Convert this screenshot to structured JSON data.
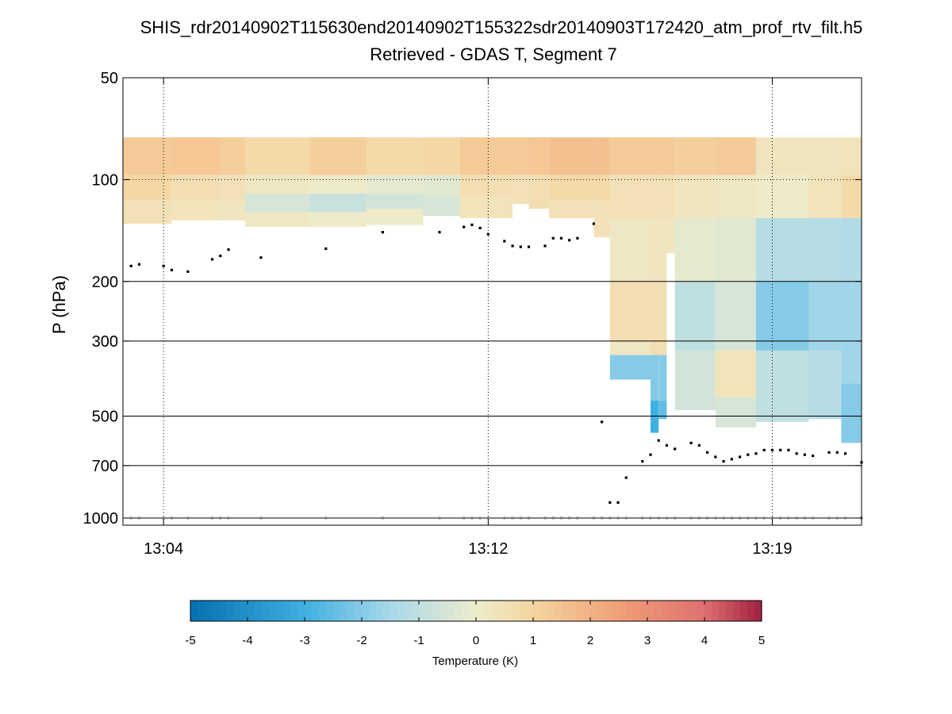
{
  "chart_data": {
    "type": "heatmap",
    "title": "SHIS_rdr20140902T115630end20140902T155322sdr20140903T172420_atm_prof_rtv_filt.h5",
    "subtitle": "Retrieved - GDAS T, Segment 7",
    "xlabel": "",
    "ylabel": "P (hPa)",
    "y_scale": "log",
    "y_direction": "reversed",
    "ylim": [
      50,
      1050
    ],
    "xlim_minutes_after_13h": [
      3.0,
      21.2
    ],
    "x_ticks": [
      {
        "minute": 4,
        "label": "13:04"
      },
      {
        "minute": 12,
        "label": "13:12"
      },
      {
        "minute": 19,
        "label": "13:19"
      }
    ],
    "y_ticks": [
      {
        "value": 50,
        "label": "50"
      },
      {
        "value": 100,
        "label": "100"
      },
      {
        "value": 200,
        "label": "200"
      },
      {
        "value": 300,
        "label": "300"
      },
      {
        "value": 500,
        "label": "500"
      },
      {
        "value": 700,
        "label": "700"
      },
      {
        "value": 1000,
        "label": "1000"
      }
    ],
    "grid_solid_levels": [
      200,
      300,
      500,
      700,
      1000
    ],
    "grid_dotted_levels": [
      100
    ],
    "grid_dotted_minutes": [
      4,
      12,
      19
    ],
    "colorbar": {
      "label": "Temperature (K)",
      "min": -5,
      "max": 5,
      "ticks": [
        -5,
        -4,
        -3,
        -2,
        -1,
        0,
        1,
        2,
        3,
        4,
        5
      ],
      "tick_labels": [
        "-5",
        "-4",
        "-3",
        "-2",
        "-1",
        "0",
        "1",
        "2",
        "3",
        "4",
        "5"
      ],
      "colormap_stops": [
        "#0570b0",
        "#3fb0e0",
        "#a8d8ea",
        "#eeeccc",
        "#f5d5a0",
        "#f0a078",
        "#e07070",
        "#a02040"
      ]
    },
    "temperature_field": {
      "description": "Retrieved minus GDAS temperature difference by column (time) and pressure band",
      "columns": [
        {
          "t0": 3.0,
          "t1": 4.2,
          "top": 75,
          "bottom": 135,
          "layers": [
            [
              75,
              97,
              1.3
            ],
            [
              97,
              115,
              0.9
            ],
            [
              115,
              135,
              0.5
            ]
          ]
        },
        {
          "t0": 4.2,
          "t1": 5.4,
          "top": 75,
          "bottom": 132,
          "layers": [
            [
              75,
              97,
              1.4
            ],
            [
              97,
              115,
              0.6
            ],
            [
              115,
              132,
              0.4
            ]
          ]
        },
        {
          "t0": 5.4,
          "t1": 6.0,
          "top": 75,
          "bottom": 132,
          "layers": [
            [
              75,
              97,
              1.2
            ],
            [
              97,
              115,
              0.5
            ],
            [
              115,
              132,
              0.3
            ]
          ]
        },
        {
          "t0": 6.0,
          "t1": 7.6,
          "top": 75,
          "bottom": 138,
          "layers": [
            [
              75,
              97,
              0.8
            ],
            [
              97,
              110,
              0.2
            ],
            [
              110,
              125,
              -0.5
            ],
            [
              125,
              138,
              0.2
            ]
          ]
        },
        {
          "t0": 7.6,
          "t1": 9.0,
          "top": 75,
          "bottom": 138,
          "layers": [
            [
              75,
              97,
              1.2
            ],
            [
              97,
              110,
              0.1
            ],
            [
              110,
              125,
              -0.8
            ],
            [
              125,
              138,
              0.1
            ]
          ]
        },
        {
          "t0": 9.0,
          "t1": 10.4,
          "top": 75,
          "bottom": 136,
          "layers": [
            [
              75,
              97,
              0.8
            ],
            [
              97,
              110,
              -0.2
            ],
            [
              110,
              122,
              -0.6
            ],
            [
              122,
              136,
              0.1
            ]
          ]
        },
        {
          "t0": 10.4,
          "t1": 11.3,
          "top": 75,
          "bottom": 128,
          "layers": [
            [
              75,
              97,
              0.9
            ],
            [
              97,
              112,
              -0.3
            ],
            [
              112,
              128,
              -0.5
            ]
          ]
        },
        {
          "t0": 11.3,
          "t1": 12.6,
          "top": 75,
          "bottom": 130,
          "layers": [
            [
              75,
              97,
              1.3
            ],
            [
              97,
              112,
              0.6
            ],
            [
              112,
              130,
              0.4
            ]
          ]
        },
        {
          "t0": 12.6,
          "t1": 13.0,
          "top": 75,
          "bottom": 118,
          "layers": [
            [
              75,
              97,
              1.3
            ],
            [
              97,
              118,
              0.5
            ]
          ]
        },
        {
          "t0": 13.0,
          "t1": 13.5,
          "top": 75,
          "bottom": 122,
          "layers": [
            [
              75,
              97,
              1.4
            ],
            [
              97,
              122,
              0.6
            ]
          ]
        },
        {
          "t0": 13.5,
          "t1": 14.6,
          "top": 75,
          "bottom": 130,
          "layers": [
            [
              75,
              97,
              1.6
            ],
            [
              97,
              115,
              0.8
            ],
            [
              115,
              130,
              0.5
            ]
          ]
        },
        {
          "t0": 14.6,
          "t1": 15.0,
          "top": 75,
          "bottom": 148,
          "layers": [
            [
              75,
              97,
              1.6
            ],
            [
              97,
              115,
              0.8
            ],
            [
              115,
              148,
              0.5
            ]
          ]
        },
        {
          "t0": 15.0,
          "t1": 16.0,
          "top": 75,
          "bottom": 390,
          "layers": [
            [
              75,
              97,
              1.3
            ],
            [
              97,
              130,
              0.5
            ],
            [
              130,
              200,
              0.2
            ],
            [
              200,
              300,
              0.6
            ],
            [
              300,
              330,
              0.2
            ],
            [
              330,
              390,
              -2.0
            ]
          ]
        },
        {
          "t0": 16.0,
          "t1": 16.2,
          "top": 75,
          "bottom": 560,
          "layers": [
            [
              75,
              97,
              1.3
            ],
            [
              97,
              130,
              0.5
            ],
            [
              130,
              200,
              0.3
            ],
            [
              200,
              330,
              0.6
            ],
            [
              330,
              450,
              -2.0
            ],
            [
              450,
              560,
              -3.0
            ]
          ]
        },
        {
          "t0": 16.2,
          "t1": 16.4,
          "top": 75,
          "bottom": 510,
          "layers": [
            [
              75,
              97,
              1.3
            ],
            [
              97,
              130,
              0.5
            ],
            [
              130,
              200,
              0.3
            ],
            [
              200,
              330,
              0.6
            ],
            [
              330,
              450,
              -2.0
            ],
            [
              450,
              510,
              -2.5
            ]
          ]
        },
        {
          "t0": 16.4,
          "t1": 16.6,
          "top": 75,
          "bottom": 165,
          "layers": [
            [
              75,
              97,
              1.3
            ],
            [
              97,
              130,
              0.5
            ],
            [
              130,
              165,
              0.3
            ]
          ]
        },
        {
          "t0": 16.6,
          "t1": 17.6,
          "top": 75,
          "bottom": 480,
          "layers": [
            [
              75,
              97,
              1.2
            ],
            [
              97,
              130,
              0.3
            ],
            [
              130,
              200,
              -0.2
            ],
            [
              200,
              320,
              -1.0
            ],
            [
              320,
              480,
              -0.6
            ]
          ]
        },
        {
          "t0": 17.6,
          "t1": 18.6,
          "top": 75,
          "bottom": 540,
          "layers": [
            [
              75,
              97,
              1.3
            ],
            [
              97,
              130,
              0.2
            ],
            [
              130,
              200,
              -0.3
            ],
            [
              200,
              320,
              -0.5
            ],
            [
              320,
              440,
              0.4
            ],
            [
              440,
              540,
              -0.5
            ]
          ]
        },
        {
          "t0": 18.6,
          "t1": 19.9,
          "top": 75,
          "bottom": 520,
          "layers": [
            [
              75,
              97,
              0.3
            ],
            [
              97,
              130,
              0.1
            ],
            [
              130,
              200,
              -1.2
            ],
            [
              200,
              320,
              -2.0
            ],
            [
              320,
              520,
              -1.0
            ]
          ]
        },
        {
          "t0": 19.9,
          "t1": 20.7,
          "top": 75,
          "bottom": 510,
          "layers": [
            [
              75,
              97,
              0.3
            ],
            [
              97,
              130,
              0.4
            ],
            [
              130,
              200,
              -1.2
            ],
            [
              200,
              320,
              -1.6
            ],
            [
              320,
              510,
              -1.2
            ]
          ]
        },
        {
          "t0": 20.7,
          "t1": 21.2,
          "top": 75,
          "bottom": 600,
          "layers": [
            [
              75,
              97,
              0.4
            ],
            [
              97,
              130,
              0.8
            ],
            [
              130,
              200,
              -1.3
            ],
            [
              200,
              400,
              -1.6
            ],
            [
              400,
              600,
              -2.0
            ]
          ]
        }
      ]
    },
    "series": [
      {
        "name": "upper level markers",
        "marker": "black dot",
        "points": [
          {
            "t": 3.2,
            "p": 180
          },
          {
            "t": 3.4,
            "p": 178
          },
          {
            "t": 4.0,
            "p": 180
          },
          {
            "t": 4.2,
            "p": 185
          },
          {
            "t": 4.6,
            "p": 187
          },
          {
            "t": 5.2,
            "p": 172
          },
          {
            "t": 5.4,
            "p": 168
          },
          {
            "t": 5.6,
            "p": 161
          },
          {
            "t": 6.4,
            "p": 170
          },
          {
            "t": 8.0,
            "p": 160
          },
          {
            "t": 9.4,
            "p": 143
          },
          {
            "t": 10.8,
            "p": 143
          },
          {
            "t": 11.4,
            "p": 138
          },
          {
            "t": 11.6,
            "p": 136
          },
          {
            "t": 11.8,
            "p": 139
          },
          {
            "t": 12.0,
            "p": 145
          },
          {
            "t": 12.4,
            "p": 152
          },
          {
            "t": 12.6,
            "p": 157
          },
          {
            "t": 12.8,
            "p": 158
          },
          {
            "t": 13.0,
            "p": 158
          },
          {
            "t": 13.4,
            "p": 157
          },
          {
            "t": 13.6,
            "p": 149
          },
          {
            "t": 13.8,
            "p": 149
          },
          {
            "t": 14.0,
            "p": 151
          },
          {
            "t": 14.2,
            "p": 149
          },
          {
            "t": 14.6,
            "p": 135
          }
        ]
      },
      {
        "name": "lower level markers",
        "marker": "black dot",
        "points": [
          {
            "t": 14.8,
            "p": 520
          },
          {
            "t": 15.0,
            "p": 900
          },
          {
            "t": 15.2,
            "p": 900
          },
          {
            "t": 15.4,
            "p": 760
          },
          {
            "t": 15.8,
            "p": 680
          },
          {
            "t": 16.0,
            "p": 650
          },
          {
            "t": 16.2,
            "p": 590
          },
          {
            "t": 16.4,
            "p": 610
          },
          {
            "t": 16.6,
            "p": 625
          },
          {
            "t": 17.0,
            "p": 600
          },
          {
            "t": 17.2,
            "p": 610
          },
          {
            "t": 17.4,
            "p": 640
          },
          {
            "t": 17.6,
            "p": 660
          },
          {
            "t": 17.8,
            "p": 680
          },
          {
            "t": 18.0,
            "p": 670
          },
          {
            "t": 18.2,
            "p": 660
          },
          {
            "t": 18.4,
            "p": 650
          },
          {
            "t": 18.6,
            "p": 645
          },
          {
            "t": 18.8,
            "p": 630
          },
          {
            "t": 19.0,
            "p": 630
          },
          {
            "t": 19.2,
            "p": 630
          },
          {
            "t": 19.4,
            "p": 630
          },
          {
            "t": 19.6,
            "p": 645
          },
          {
            "t": 19.8,
            "p": 650
          },
          {
            "t": 20.0,
            "p": 655
          },
          {
            "t": 20.4,
            "p": 640
          },
          {
            "t": 20.6,
            "p": 640
          },
          {
            "t": 20.8,
            "p": 645
          },
          {
            "t": 21.2,
            "p": 685
          }
        ]
      },
      {
        "name": "surface markers",
        "marker": "gray dot",
        "p": 1000,
        "times": [
          3.2,
          3.4,
          4.0,
          4.2,
          4.6,
          5.2,
          5.4,
          5.6,
          6.4,
          8.0,
          9.4,
          10.8,
          11.4,
          11.6,
          11.8,
          12.0,
          12.4,
          12.6,
          12.8,
          13.0,
          13.4,
          13.6,
          13.8,
          14.0,
          14.2,
          14.6,
          14.8,
          15.0,
          15.2,
          15.4,
          15.8,
          16.0,
          16.2,
          16.4,
          16.6,
          17.0,
          17.2,
          17.4,
          17.6,
          17.8,
          18.0,
          18.2,
          18.4,
          18.6,
          18.8,
          19.0,
          19.2,
          19.4,
          19.6,
          19.8,
          20.0,
          20.4,
          20.6,
          20.8,
          21.2
        ]
      }
    ]
  }
}
